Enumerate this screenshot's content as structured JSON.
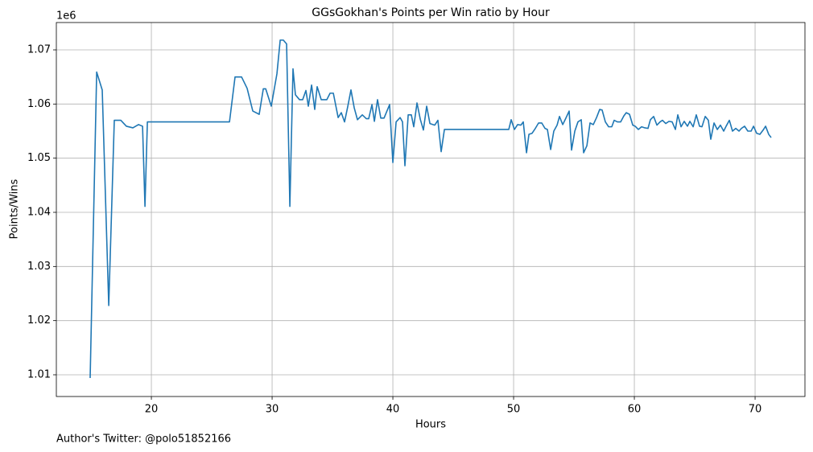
{
  "chart_data": {
    "type": "line",
    "title": "GGsGokhan's Points per Win ratio by Hour",
    "x_label": "Hours",
    "y_label": "Points/Wins",
    "y_offset_text": "1e6",
    "footnote": "Author's Twitter: @polo51852166",
    "grid": true,
    "xlim": [
      12.13,
      74.13
    ],
    "ylim": [
      1.00599,
      1.07505
    ],
    "xticks": [
      20,
      30,
      40,
      50,
      60,
      70
    ],
    "yticks": [
      1.01,
      1.02,
      1.03,
      1.04,
      1.05,
      1.06,
      1.07
    ],
    "x": [
      14.93,
      15.47,
      15.93,
      16.47,
      16.93,
      17.47,
      17.93,
      18.47,
      18.93,
      19.27,
      19.47,
      19.67,
      26.47,
      26.93,
      27.47,
      27.93,
      28.4,
      28.93,
      29.27,
      29.47,
      29.93,
      30.4,
      30.67,
      30.93,
      31.2,
      31.47,
      31.73,
      31.93,
      32.27,
      32.53,
      32.8,
      33.0,
      33.27,
      33.53,
      33.73,
      34.07,
      34.53,
      34.8,
      35.07,
      35.47,
      35.73,
      36.0,
      36.27,
      36.53,
      36.8,
      37.07,
      37.47,
      37.8,
      38.0,
      38.27,
      38.47,
      38.73,
      39.0,
      39.27,
      39.73,
      40.0,
      40.27,
      40.6,
      40.8,
      41.0,
      41.27,
      41.53,
      41.73,
      42.0,
      42.27,
      42.53,
      42.8,
      43.07,
      43.47,
      43.73,
      44.0,
      44.27,
      49.6,
      49.8,
      50.07,
      50.33,
      50.6,
      50.8,
      51.07,
      51.27,
      51.53,
      51.8,
      52.07,
      52.33,
      52.6,
      52.8,
      53.07,
      53.33,
      53.6,
      53.8,
      54.07,
      54.33,
      54.6,
      54.8,
      55.07,
      55.33,
      55.6,
      55.8,
      56.07,
      56.33,
      56.6,
      56.87,
      57.13,
      57.33,
      57.6,
      57.87,
      58.13,
      58.33,
      58.6,
      58.87,
      59.13,
      59.33,
      59.6,
      59.87,
      60.07,
      60.33,
      60.6,
      60.87,
      61.13,
      61.33,
      61.6,
      61.87,
      62.13,
      62.33,
      62.6,
      62.87,
      63.13,
      63.4,
      63.6,
      63.87,
      64.13,
      64.4,
      64.6,
      64.87,
      65.13,
      65.4,
      65.6,
      65.87,
      66.13,
      66.33,
      66.6,
      66.87,
      67.13,
      67.4,
      67.6,
      67.87,
      68.13,
      68.4,
      68.67,
      68.87,
      69.13,
      69.4,
      69.67,
      69.87,
      70.13,
      70.4,
      70.67,
      70.87,
      71.13,
      71.33
    ],
    "series": [
      {
        "name": "Points/Wins",
        "color": "#1f77b4",
        "values": [
          1.0094,
          1.0659,
          1.0626,
          1.0228,
          1.057,
          1.057,
          1.0559,
          1.0556,
          1.0562,
          1.0559,
          1.0411,
          1.0567,
          1.0567,
          1.065,
          1.065,
          1.0629,
          1.0587,
          1.0581,
          1.0628,
          1.0628,
          1.0596,
          1.0656,
          1.0718,
          1.0718,
          1.0711,
          1.0411,
          1.0665,
          1.0617,
          1.0608,
          1.0608,
          1.0625,
          1.0596,
          1.0635,
          1.059,
          1.0632,
          1.0608,
          1.0608,
          1.062,
          1.062,
          1.0575,
          1.0584,
          1.0567,
          1.0596,
          1.0626,
          1.0593,
          1.0571,
          1.058,
          1.0573,
          1.0573,
          1.0599,
          1.0568,
          1.0608,
          1.0574,
          1.0574,
          1.0599,
          1.0492,
          1.0567,
          1.0575,
          1.0567,
          1.0486,
          1.058,
          1.058,
          1.0558,
          1.0602,
          1.0572,
          1.0552,
          1.0596,
          1.0564,
          1.0561,
          1.057,
          1.0512,
          1.0553,
          1.0553,
          1.0571,
          1.0553,
          1.0562,
          1.0561,
          1.0567,
          1.051,
          1.0544,
          1.0546,
          1.0555,
          1.0565,
          1.0565,
          1.0555,
          1.0553,
          1.0516,
          1.055,
          1.0561,
          1.0577,
          1.0562,
          1.0574,
          1.0587,
          1.0515,
          1.055,
          1.0567,
          1.0571,
          1.051,
          1.0523,
          1.0565,
          1.0562,
          1.0575,
          1.059,
          1.0589,
          1.0567,
          1.0558,
          1.0558,
          1.057,
          1.0567,
          1.0567,
          1.0578,
          1.0584,
          1.0581,
          1.0561,
          1.0559,
          1.0553,
          1.0558,
          1.0556,
          1.0555,
          1.0571,
          1.0577,
          1.0561,
          1.0567,
          1.057,
          1.0564,
          1.0568,
          1.0567,
          1.0553,
          1.058,
          1.0558,
          1.0568,
          1.0559,
          1.0568,
          1.0558,
          1.058,
          1.0559,
          1.0558,
          1.0577,
          1.057,
          1.0535,
          1.0565,
          1.0553,
          1.0561,
          1.055,
          1.0559,
          1.057,
          1.055,
          1.0555,
          1.055,
          1.0555,
          1.0559,
          1.055,
          1.055,
          1.0559,
          1.0546,
          1.0544,
          1.0552,
          1.0559,
          1.0544,
          1.0538
        ]
      }
    ]
  }
}
